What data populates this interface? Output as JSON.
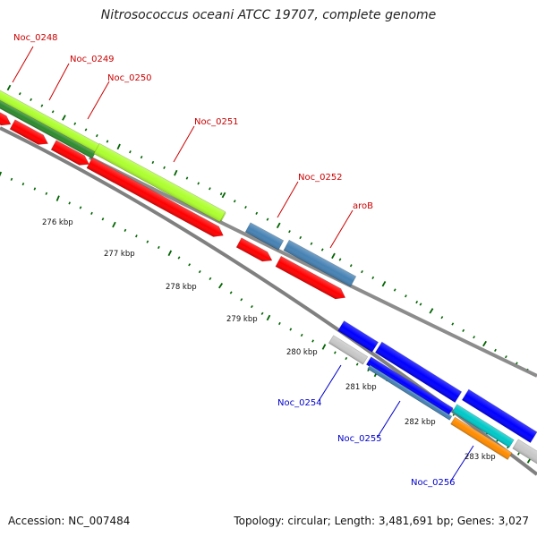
{
  "title": "Nitrosococcus oceani ATCC 19707, complete genome",
  "footer": {
    "accession": "Accession: NC_007484",
    "topology": "Topology: circular; Length: 3,481,691 bp; Genes: 3,027"
  },
  "colors": {
    "forward_label": "#cc0000",
    "reverse_label": "#0000cc",
    "red_gene": "#ff0000",
    "steelblue_gene": "#4682b4",
    "blue_gene": "#0000ff",
    "lime_band": "#adff2f",
    "dark_green_band": "#2e8b2e",
    "cyan_band": "#00c8c8",
    "orange_band": "#ff8c00",
    "grey_band": "#c8c8c8",
    "backbone": "#808080",
    "tick_mark": "#006400"
  },
  "gene_labels": [
    {
      "text": "Noc_0248",
      "strand": "forward"
    },
    {
      "text": "Noc_0249",
      "strand": "forward"
    },
    {
      "text": "Noc_0250",
      "strand": "forward"
    },
    {
      "text": "Noc_0251",
      "strand": "forward"
    },
    {
      "text": "Noc_0252",
      "strand": "forward"
    },
    {
      "text": "aroB",
      "strand": "forward"
    },
    {
      "text": "Noc_0254",
      "strand": "reverse"
    },
    {
      "text": "Noc_0255",
      "strand": "reverse"
    },
    {
      "text": "Noc_0256",
      "strand": "reverse"
    }
  ],
  "scale_labels": [
    "276 kbp",
    "277 kbp",
    "278 kbp",
    "279 kbp",
    "280 kbp",
    "281 kbp",
    "282 kbp",
    "283 kbp"
  ]
}
